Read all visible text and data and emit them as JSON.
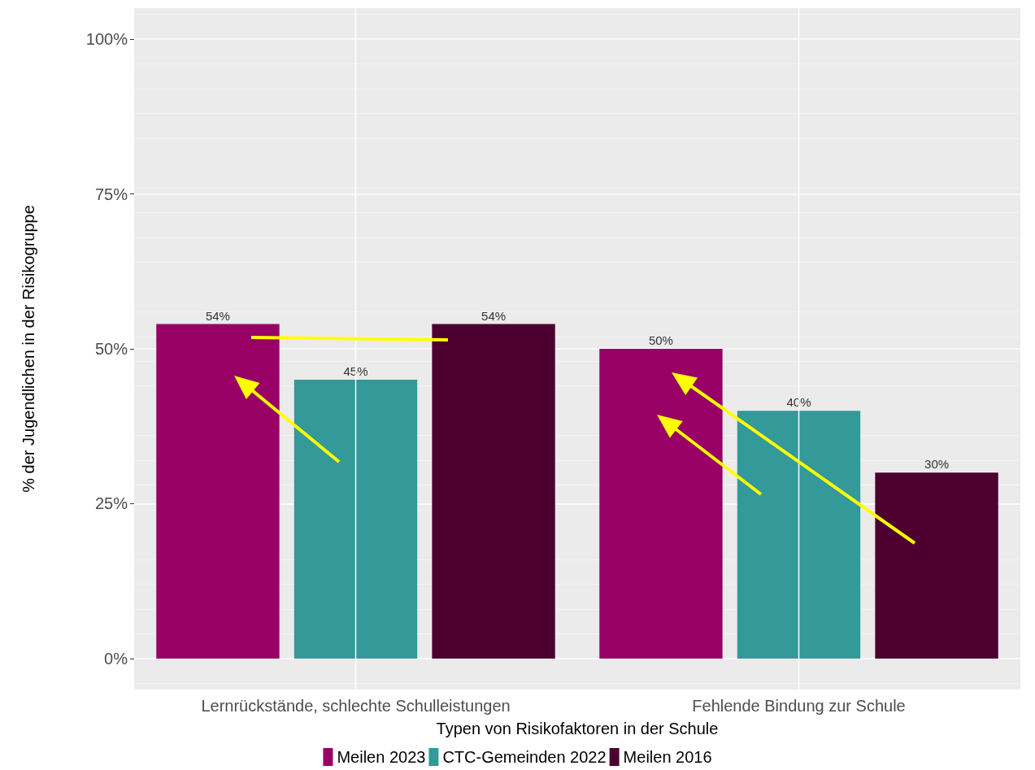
{
  "chart_data": {
    "type": "bar",
    "xlabel": "Typen von Risikofaktoren in der Schule",
    "ylabel": "% der Jugendlichen in der Risikogruppe",
    "categories": [
      "Lernrückstände, schlechte Schulleistungen",
      "Fehlende Bindung zur Schule"
    ],
    "series": [
      {
        "name": "Meilen 2023",
        "color": "#990066",
        "values": [
          54,
          50
        ],
        "value_labels": [
          "54%",
          "50%"
        ]
      },
      {
        "name": "CTC-Gemeinden 2022",
        "color": "#339999",
        "values": [
          45,
          40
        ],
        "value_labels": [
          "45%",
          "40%"
        ]
      },
      {
        "name": "Meilen 2016",
        "color": "#4d0030",
        "values": [
          54,
          30
        ],
        "value_labels": [
          "54%",
          "30%"
        ]
      }
    ],
    "ylim": [
      -5,
      105
    ],
    "yticks": [
      {
        "value": 0,
        "label": "0%"
      },
      {
        "value": 25,
        "label": "25%"
      },
      {
        "value": 50,
        "label": "50%"
      },
      {
        "value": 75,
        "label": "75%"
      },
      {
        "value": 100,
        "label": "100%"
      }
    ],
    "grid": true,
    "legend": "bottom"
  }
}
